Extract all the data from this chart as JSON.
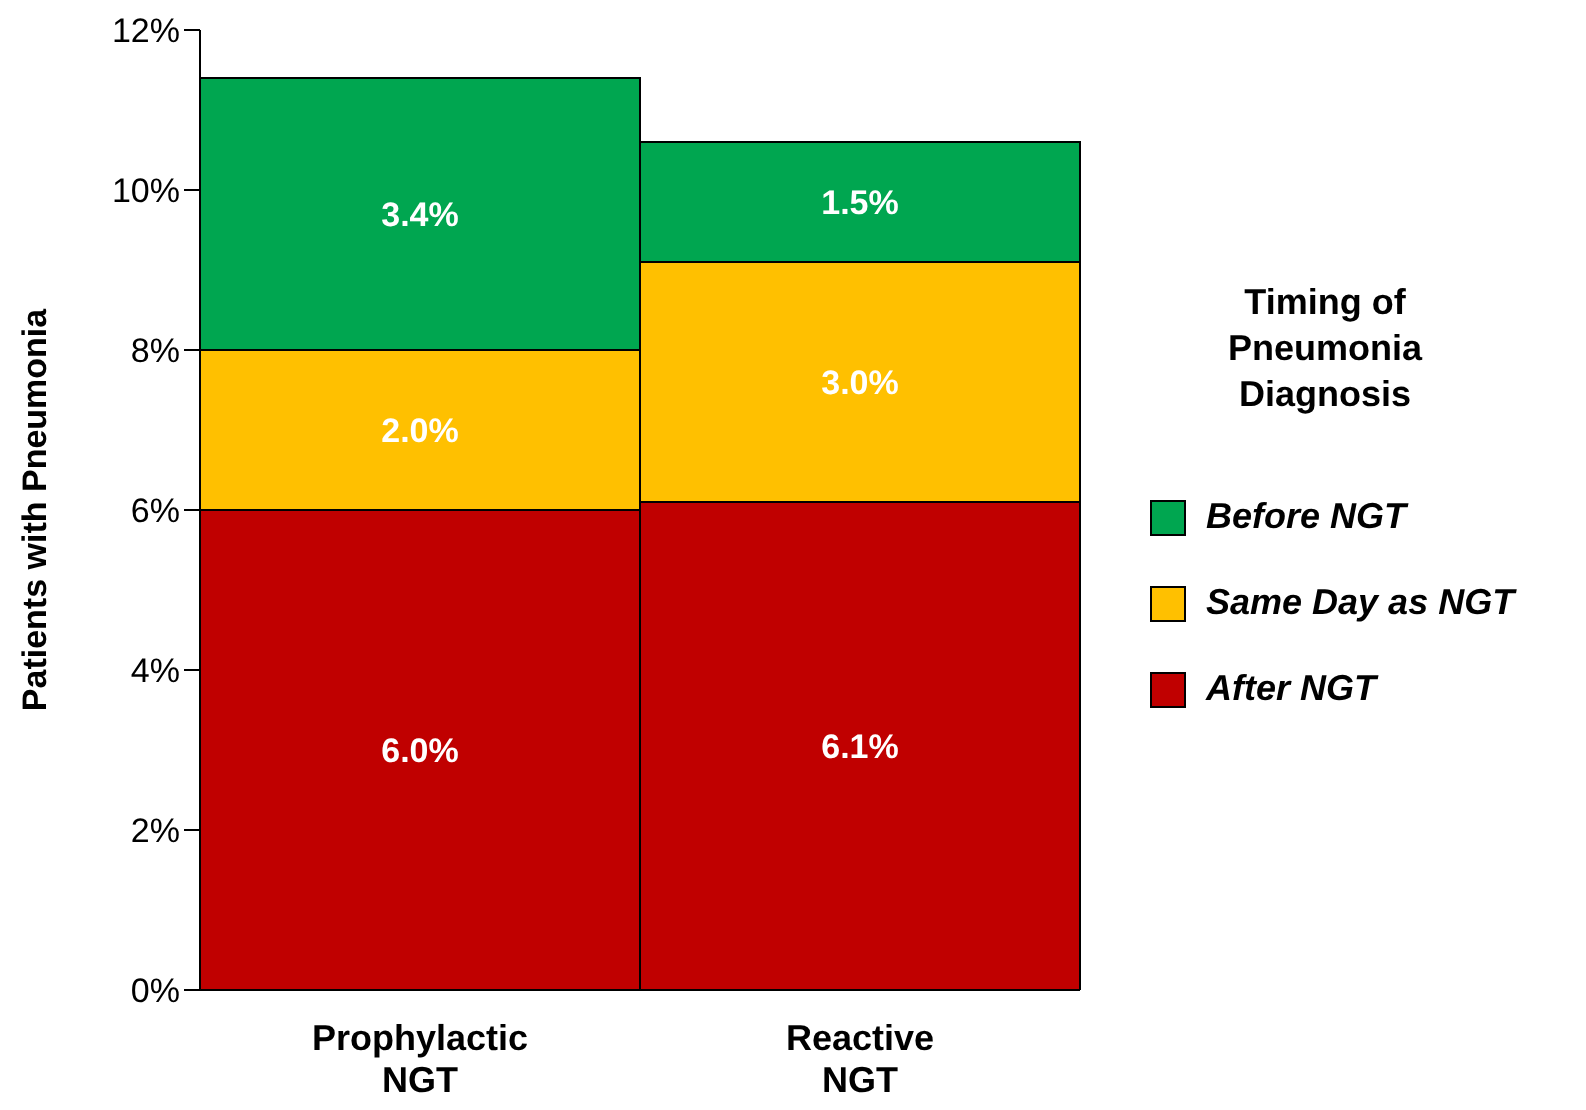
{
  "chart_data": {
    "type": "bar",
    "stacked": true,
    "ylabel": "Patients with Pneumonia",
    "legend_title": "Timing of Pneumonia Diagnosis",
    "legend": "right",
    "grid": false,
    "categories": [
      "Prophylactic NGT",
      "Reactive NGT"
    ],
    "ylim": [
      0,
      12
    ],
    "yticks": [
      {
        "value": 0,
        "label": "0%"
      },
      {
        "value": 2,
        "label": "2%"
      },
      {
        "value": 4,
        "label": "4%"
      },
      {
        "value": 6,
        "label": "6%"
      },
      {
        "value": 8,
        "label": "8%"
      },
      {
        "value": 10,
        "label": "10%"
      },
      {
        "value": 12,
        "label": "12%"
      }
    ],
    "series": [
      {
        "name": "After NGT",
        "color": "#c00000",
        "values": [
          6.0,
          6.1
        ],
        "value_labels": [
          "6.0%",
          "6.1%"
        ]
      },
      {
        "name": "Same Day as NGT",
        "color": "#ffc000",
        "values": [
          2.0,
          3.0
        ],
        "value_labels": [
          "2.0%",
          "3.0%"
        ]
      },
      {
        "name": "Before NGT",
        "color": "#00a650",
        "values": [
          3.4,
          1.5
        ],
        "value_labels": [
          "3.4%",
          "1.5%"
        ]
      }
    ]
  }
}
